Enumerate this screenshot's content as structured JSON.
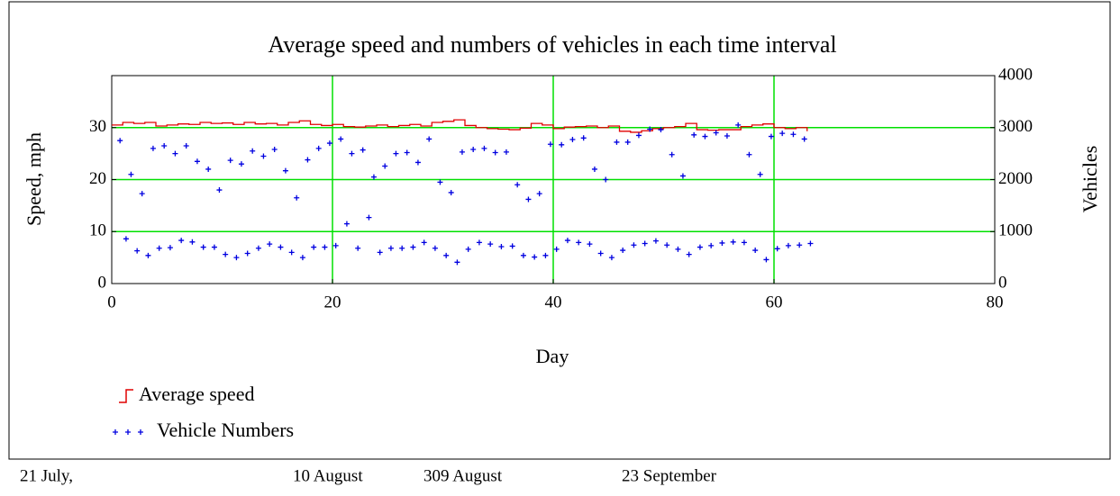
{
  "chart_data": {
    "type": "step-scatter",
    "title": "Average speed and numbers of vehicles in each time interval",
    "x_label": "Day",
    "y_label": "Speed, mph",
    "y2_label": "Vehicles",
    "xlim": [
      0,
      80
    ],
    "xticks": [
      0,
      20,
      40,
      60,
      80
    ],
    "ylim": [
      0,
      40
    ],
    "yticks": [
      0,
      10,
      20,
      30
    ],
    "y2lim": [
      0,
      4000
    ],
    "y2ticks": [
      0,
      1000,
      2000,
      3000,
      4000
    ],
    "grid": true,
    "grid_color": "#00e000",
    "legend": "bottom-left",
    "series": [
      {
        "name": "Average speed",
        "color": "#e00000",
        "kind": "step",
        "x": [
          0,
          1,
          2,
          3,
          4,
          5,
          6,
          7,
          8,
          9,
          10,
          11,
          12,
          13,
          14,
          15,
          16,
          17,
          18,
          19,
          20,
          21,
          22,
          23,
          24,
          25,
          26,
          27,
          28,
          29,
          30,
          31,
          32,
          33,
          34,
          35,
          36,
          37,
          38,
          39,
          40,
          41,
          42,
          43,
          44,
          45,
          46,
          47,
          48,
          49,
          50,
          51,
          52,
          53,
          54,
          55,
          56,
          57,
          58,
          59,
          60,
          61,
          62,
          63
        ],
        "values": [
          30.5,
          31,
          30.8,
          31,
          30.3,
          30.5,
          30.7,
          30.6,
          31,
          30.8,
          30.9,
          30.6,
          31,
          30.7,
          30.8,
          30.5,
          31,
          31.3,
          30.6,
          30.4,
          30.6,
          30.2,
          30.1,
          30.3,
          30.5,
          30.2,
          30.4,
          30.6,
          30.3,
          31,
          31.2,
          31.5,
          30.4,
          30,
          29.8,
          29.7,
          29.6,
          29.9,
          30.8,
          30.5,
          29.8,
          30.1,
          30.2,
          30.3,
          30,
          30.3,
          29.3,
          29.1,
          29.4,
          29.8,
          30,
          30.2,
          30.8,
          29.6,
          29.5,
          29.6,
          29.6,
          30.2,
          30.5,
          30.7,
          30,
          29.8,
          30,
          29.3
        ]
      },
      {
        "name": "Vehicle Numbers",
        "color": "#0000e0",
        "kind": "scatter",
        "axis": "y2",
        "x": [
          0.75,
          1.3,
          1.75,
          2.3,
          2.75,
          3.3,
          3.75,
          4.3,
          4.75,
          5.3,
          5.75,
          6.3,
          6.75,
          7.3,
          7.75,
          8.3,
          8.75,
          9.3,
          9.75,
          10.3,
          10.75,
          11.3,
          11.75,
          12.3,
          12.75,
          13.3,
          13.75,
          14.3,
          14.75,
          15.3,
          15.75,
          16.3,
          16.75,
          17.3,
          17.75,
          18.3,
          18.75,
          19.3,
          19.75,
          20.3,
          20.75,
          21.3,
          21.75,
          22.3,
          22.75,
          23.3,
          23.75,
          24.3,
          24.75,
          25.3,
          25.75,
          26.3,
          26.75,
          27.3,
          27.75,
          28.3,
          28.75,
          29.3,
          29.75,
          30.3,
          30.75,
          31.3,
          31.75,
          32.3,
          32.75,
          33.3,
          33.75,
          34.3,
          34.75,
          35.3,
          35.75,
          36.3,
          36.75,
          37.3,
          37.75,
          38.3,
          38.75,
          39.3,
          39.75,
          40.3,
          40.75,
          41.3,
          41.75,
          42.3,
          42.75,
          43.3,
          43.75,
          44.3,
          44.75,
          45.3,
          45.75,
          46.3,
          46.75,
          47.3,
          47.75,
          48.3,
          48.75,
          49.3,
          49.75,
          50.3,
          50.75,
          51.3,
          51.75,
          52.3,
          52.75,
          53.3,
          53.75,
          54.3,
          54.75,
          55.3,
          55.75,
          56.3,
          56.75,
          57.3,
          57.75,
          58.3,
          58.75,
          59.3,
          59.75,
          60.3,
          60.75,
          61.3,
          61.75,
          62.3,
          62.75,
          63.3
        ],
        "values": [
          2750,
          860,
          2100,
          630,
          1730,
          540,
          2600,
          680,
          2650,
          690,
          2500,
          830,
          2650,
          800,
          2350,
          700,
          2200,
          700,
          1800,
          560,
          2370,
          500,
          2300,
          580,
          2550,
          680,
          2450,
          760,
          2580,
          700,
          2170,
          600,
          1650,
          500,
          2380,
          700,
          2600,
          700,
          2700,
          730,
          2780,
          1150,
          2500,
          680,
          2570,
          1270,
          2050,
          600,
          2260,
          680,
          2500,
          680,
          2520,
          700,
          2330,
          790,
          2780,
          680,
          1950,
          540,
          1750,
          410,
          2530,
          660,
          2580,
          790,
          2600,
          760,
          2520,
          710,
          2530,
          720,
          1900,
          540,
          1620,
          510,
          1730,
          540,
          2680,
          660,
          2670,
          830,
          2770,
          790,
          2800,
          760,
          2200,
          580,
          2000,
          500,
          2720,
          640,
          2720,
          740,
          2850,
          770,
          2970,
          820,
          2960,
          740,
          2480,
          660,
          2070,
          560,
          2860,
          700,
          2830,
          730,
          2900,
          780,
          2840,
          800,
          3050,
          790,
          2480,
          640,
          2100,
          460,
          2830,
          670,
          2890,
          730,
          2870,
          740,
          2780,
          770
        ]
      }
    ],
    "annotations": [
      "21 July,",
      "10 August",
      "309 August",
      "23 September"
    ]
  }
}
